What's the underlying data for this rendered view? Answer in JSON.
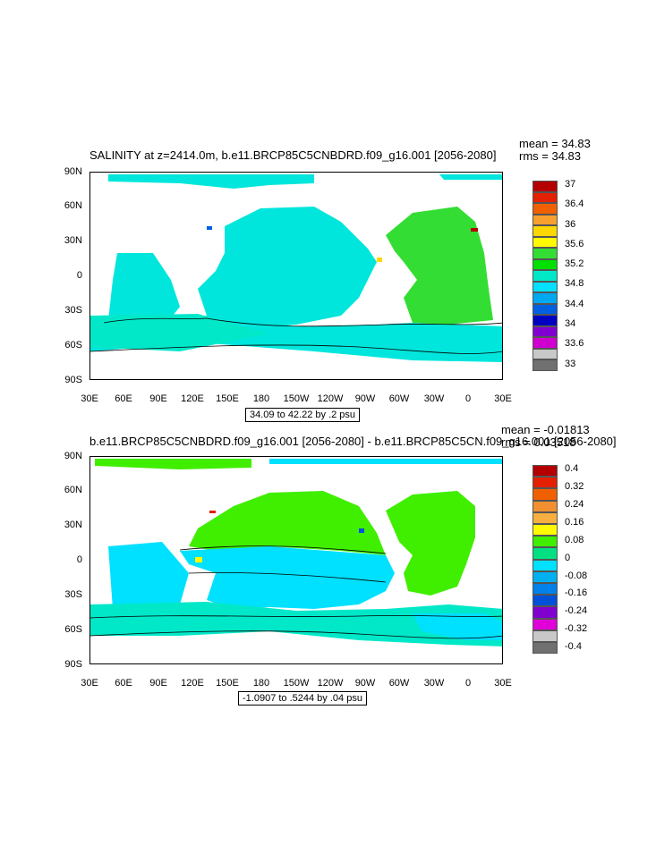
{
  "top": {
    "title": "SALINITY at z=2414.0m, b.e11.BRCP85C5CNBDRD.f09_g16.001 [2056-2080]",
    "mean": "mean = 34.83",
    "rms": "rms = 34.83",
    "range_label": "34.09 to 42.22 by .2 psu",
    "legend_labels": [
      "37",
      "36.4",
      "36",
      "35.6",
      "35.2",
      "34.8",
      "34.4",
      "34",
      "33.6",
      "33"
    ],
    "legend_colors": [
      "#b40000",
      "#e32000",
      "#f06000",
      "#f7a030",
      "#ffd700",
      "#fffa00",
      "#33dd33",
      "#00e000",
      "#00e8c8",
      "#00e0ff",
      "#00a8f0",
      "#0060e0",
      "#0000c0",
      "#8000d0",
      "#d000d0",
      "#c8c8c8",
      "#707070"
    ]
  },
  "bottom": {
    "title": "b.e11.BRCP85C5CNBDRD.f09_g16.001 [2056-2080] - b.e11.BRCP85C5CN.f09_g16.001 [2056-2080]",
    "mean": "mean = -0.01813",
    "rms": "rms = 0.03518",
    "range_label": "-1.0907 to .5244 by .04 psu",
    "legend_labels": [
      "0.4",
      "0.32",
      "0.24",
      "0.16",
      "0.08",
      "0",
      "-0.08",
      "-0.16",
      "-0.24",
      "-0.32",
      "-0.4"
    ],
    "legend_colors": [
      "#b40000",
      "#e32000",
      "#f06000",
      "#f09030",
      "#f7b040",
      "#fffa00",
      "#40ee00",
      "#00e080",
      "#00e0ff",
      "#00b0f0",
      "#0080e8",
      "#0050d8",
      "#8000d0",
      "#e000d8",
      "#c8c8c8",
      "#707070"
    ]
  },
  "axes": {
    "lat_labels": [
      "90N",
      "60N",
      "30N",
      "0",
      "30S",
      "60S",
      "90S"
    ],
    "lon_labels": [
      "30E",
      "60E",
      "90E",
      "120E",
      "150E",
      "180",
      "150W",
      "120W",
      "90W",
      "60W",
      "30W",
      "0",
      "30E"
    ]
  },
  "colors": {
    "top_fill_ocean": "#00e6dc",
    "top_fill_south": "#00e8c8",
    "top_fill_atlantic": "#33dd33",
    "bottom_fill_pos": "#40ee00",
    "bottom_fill_neg": "#00e0ff",
    "bottom_fill_neg2": "#00e8c8"
  }
}
